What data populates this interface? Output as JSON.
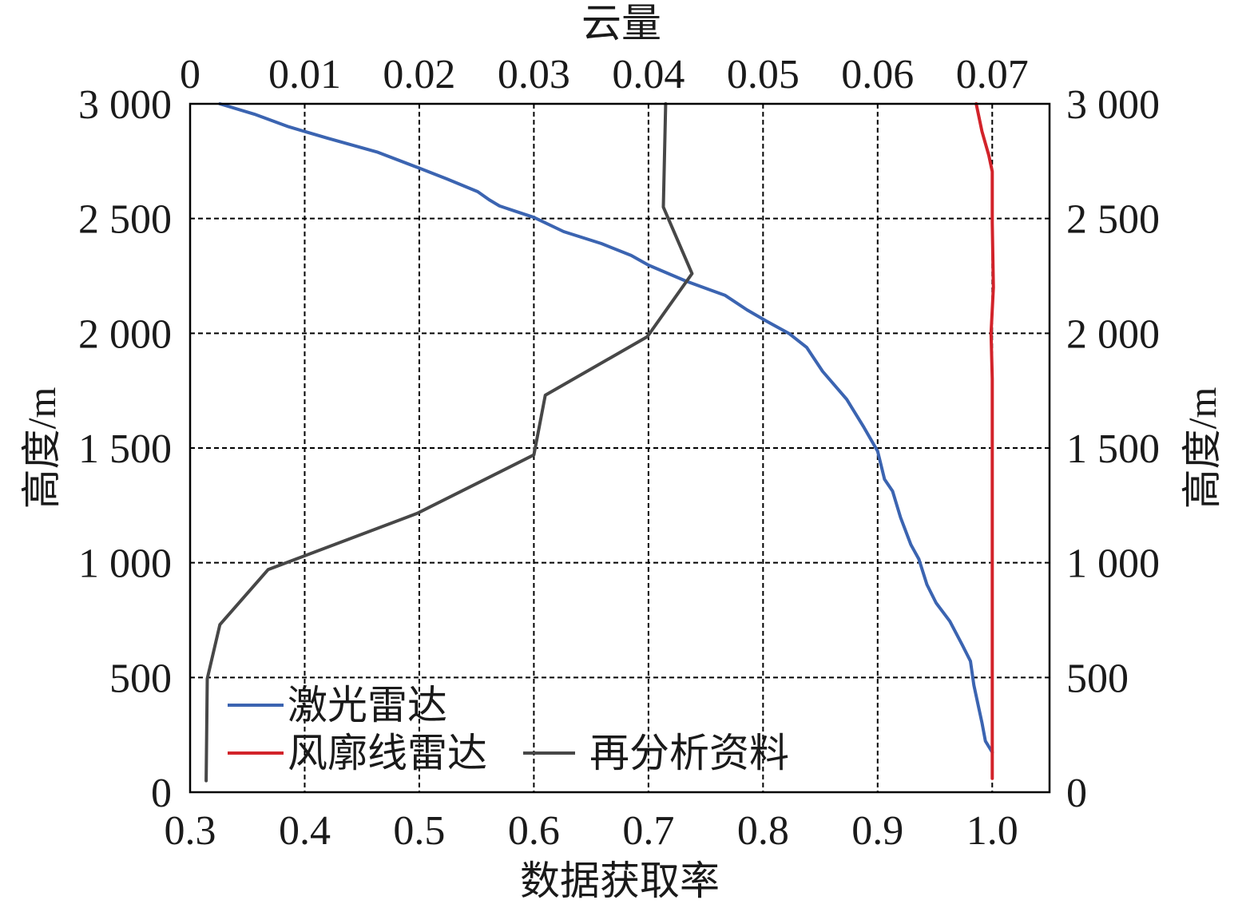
{
  "chart_data": {
    "type": "line",
    "xlabel": "数据获取率",
    "x2label": "云量",
    "ylabel": "高度/m",
    "y2label": "高度/m",
    "xlim": [
      0.3,
      1.05
    ],
    "x2lim": [
      0,
      0.075
    ],
    "ylim": [
      0,
      3000
    ],
    "xticks": [
      0.3,
      0.4,
      0.5,
      0.6,
      0.7,
      0.8,
      0.9,
      1.0
    ],
    "xtick_labels": [
      "0.3",
      "0.4",
      "0.5",
      "0.6",
      "0.7",
      "0.8",
      "0.9",
      "1.0"
    ],
    "x2ticks": [
      0,
      0.01,
      0.02,
      0.03,
      0.04,
      0.05,
      0.06,
      0.07
    ],
    "x2tick_labels": [
      "0",
      "0.01",
      "0.02",
      "0.03",
      "0.04",
      "0.05",
      "0.06",
      "0.07"
    ],
    "yticks": [
      0,
      500,
      1000,
      1500,
      2000,
      2500,
      3000
    ],
    "ytick_labels": [
      "0",
      "500",
      "1 000",
      "1 500",
      "2 000",
      "2 500",
      "3 000"
    ],
    "y2tick_labels": [
      "0",
      "500",
      "1 000",
      "1 500",
      "2 000",
      "2 500",
      "3 000"
    ],
    "grid": true,
    "legend_position": "bottom-left",
    "series": [
      {
        "name": "激光雷达",
        "color": "#3b64b1",
        "top_axis": false,
        "points": [
          [
            0.326,
            3000
          ],
          [
            0.356,
            2955
          ],
          [
            0.386,
            2900
          ],
          [
            0.42,
            2850
          ],
          [
            0.463,
            2790
          ],
          [
            0.5,
            2720
          ],
          [
            0.524,
            2673
          ],
          [
            0.551,
            2617
          ],
          [
            0.561,
            2582
          ],
          [
            0.57,
            2555
          ],
          [
            0.6,
            2505
          ],
          [
            0.626,
            2443
          ],
          [
            0.659,
            2391
          ],
          [
            0.685,
            2339
          ],
          [
            0.7,
            2297
          ],
          [
            0.733,
            2227
          ],
          [
            0.767,
            2165
          ],
          [
            0.786,
            2102
          ],
          [
            0.803,
            2053
          ],
          [
            0.823,
            1998
          ],
          [
            0.838,
            1939
          ],
          [
            0.852,
            1834
          ],
          [
            0.873,
            1712
          ],
          [
            0.888,
            1590
          ],
          [
            0.9,
            1486
          ],
          [
            0.906,
            1364
          ],
          [
            0.913,
            1312
          ],
          [
            0.92,
            1197
          ],
          [
            0.929,
            1079
          ],
          [
            0.936,
            1016
          ],
          [
            0.943,
            905
          ],
          [
            0.951,
            825
          ],
          [
            0.963,
            745
          ],
          [
            0.974,
            640
          ],
          [
            0.981,
            571
          ],
          [
            0.984,
            466
          ],
          [
            0.988,
            372
          ],
          [
            0.991,
            303
          ],
          [
            0.994,
            223
          ],
          [
            1.0,
            174
          ]
        ]
      },
      {
        "name": "风廓线雷达",
        "color": "#d2232a",
        "top_axis": false,
        "points": [
          [
            0.986,
            3000
          ],
          [
            0.991,
            2880
          ],
          [
            0.997,
            2775
          ],
          [
            1.0,
            2705
          ],
          [
            1.0,
            2480
          ],
          [
            1.001,
            2200
          ],
          [
            0.999,
            2000
          ],
          [
            1.0,
            1800
          ],
          [
            1.0,
            60
          ]
        ]
      },
      {
        "name": "再分析资料",
        "color": "#474747",
        "top_axis": true,
        "points": [
          [
            0.0415,
            3000
          ],
          [
            0.0413,
            2550
          ],
          [
            0.0438,
            2260
          ],
          [
            0.0399,
            1985
          ],
          [
            0.031,
            1730
          ],
          [
            0.03,
            1470
          ],
          [
            0.0198,
            1215
          ],
          [
            0.0068,
            970
          ],
          [
            0.0026,
            730
          ],
          [
            0.0015,
            495
          ],
          [
            0.0014,
            50
          ]
        ]
      }
    ]
  }
}
